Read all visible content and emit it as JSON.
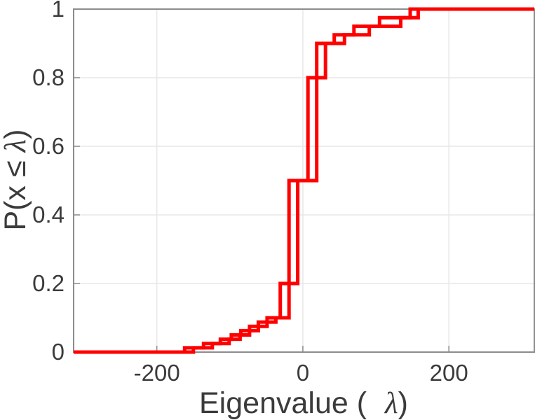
{
  "figure": {
    "title": "",
    "xlabel": {
      "pre": "Eigenvalue (",
      "math": "λ",
      "close": ")"
    },
    "ylabel": {
      "pre": "P(x ≤",
      "math": "λ",
      "close": ")"
    }
  },
  "chart_data": {
    "type": "step",
    "subtype": "empirical-cdf-stairs",
    "title": "",
    "xlabel": "Eigenvalue (λ)",
    "ylabel": "P(x ≤ λ)",
    "xlim": [
      -314,
      317
    ],
    "ylim": [
      0,
      1
    ],
    "xticks": [
      -200,
      0,
      200
    ],
    "xtick_labels": [
      "-200",
      "0",
      "200"
    ],
    "yticks": [
      0,
      0.2,
      0.4,
      0.6,
      0.8,
      1
    ],
    "ytick_labels": [
      "0",
      "0.2",
      "0.4",
      "0.6",
      "0.8",
      "1"
    ],
    "grid": true,
    "legend": "none",
    "line_color": "#ff0000",
    "line_width": 5,
    "grid_color": "#e7e7e7",
    "axis_color": "#8c8c8c",
    "text_color": "#3b3b3b",
    "series": [
      {
        "name": "ecdf-curve-1",
        "points": [
          [
            -162,
            0.0125
          ],
          [
            -136,
            0.025
          ],
          [
            -113,
            0.0375
          ],
          [
            -98,
            0.05
          ],
          [
            -85,
            0.0625
          ],
          [
            -73,
            0.075
          ],
          [
            -61,
            0.0875
          ],
          [
            -49,
            0.1
          ],
          [
            -31,
            0.2
          ],
          [
            -19,
            0.5
          ],
          [
            7,
            0.8
          ],
          [
            19,
            0.9
          ],
          [
            43,
            0.925
          ],
          [
            70,
            0.95
          ],
          [
            105,
            0.975
          ],
          [
            147,
            1.0
          ]
        ]
      },
      {
        "name": "ecdf-curve-2",
        "points": [
          [
            -150,
            0.0125
          ],
          [
            -124,
            0.025
          ],
          [
            -101,
            0.0375
          ],
          [
            -86,
            0.05
          ],
          [
            -73,
            0.0625
          ],
          [
            -61,
            0.075
          ],
          [
            -49,
            0.0875
          ],
          [
            -37,
            0.1
          ],
          [
            -19,
            0.2
          ],
          [
            -7,
            0.5
          ],
          [
            19,
            0.8
          ],
          [
            31,
            0.9
          ],
          [
            57,
            0.925
          ],
          [
            91,
            0.95
          ],
          [
            134,
            0.975
          ],
          [
            158,
            1.0
          ]
        ]
      }
    ]
  }
}
